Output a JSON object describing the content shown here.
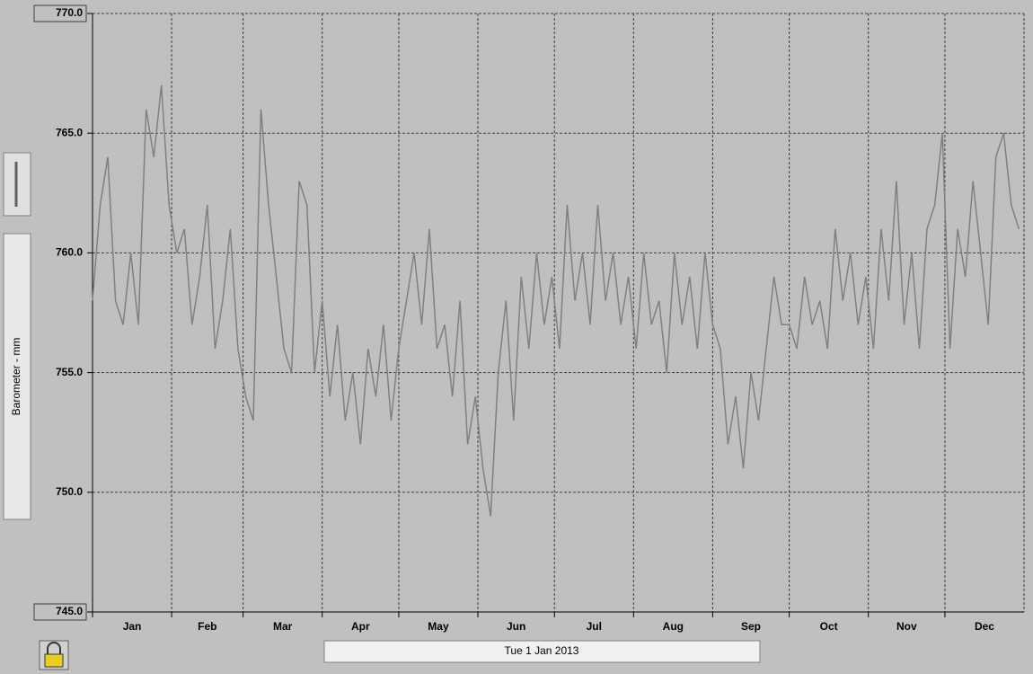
{
  "chart_data": {
    "type": "line",
    "y_label": "Barometer - mm",
    "date_label": "Tue 1 Jan 2013",
    "x": [
      1,
      4,
      7,
      10,
      13,
      16,
      19,
      22,
      25,
      28,
      31,
      34,
      37,
      40,
      43,
      46,
      49,
      52,
      55,
      58,
      61,
      64,
      67,
      70,
      73,
      76,
      79,
      82,
      85,
      88,
      91,
      94,
      97,
      100,
      103,
      106,
      109,
      112,
      115,
      118,
      121,
      124,
      127,
      130,
      133,
      136,
      139,
      142,
      145,
      148,
      151,
      154,
      157,
      160,
      163,
      166,
      169,
      172,
      175,
      178,
      181,
      184,
      187,
      190,
      193,
      196,
      199,
      202,
      205,
      208,
      211,
      214,
      217,
      220,
      223,
      226,
      229,
      232,
      235,
      238,
      241,
      244,
      247,
      250,
      253,
      256,
      259,
      262,
      265,
      268,
      271,
      274,
      277,
      280,
      283,
      286,
      289,
      292,
      295,
      298,
      301,
      304,
      307,
      310,
      313,
      316,
      319,
      322,
      325,
      328,
      331,
      334,
      337,
      340,
      343,
      346,
      349,
      352,
      355,
      358,
      361,
      364
    ],
    "series": [
      {
        "color": "#808080",
        "values": [
          758,
          762,
          764,
          758,
          757,
          760,
          757,
          766,
          764,
          767,
          762,
          760,
          761,
          757,
          759,
          762,
          756,
          758,
          761,
          756,
          754,
          753,
          766,
          762,
          759,
          756,
          755,
          763,
          762,
          755,
          758,
          754,
          757,
          753,
          755,
          752,
          756,
          754,
          757,
          753,
          756,
          758,
          760,
          757,
          761,
          756,
          757,
          754,
          758,
          752,
          754,
          751,
          749,
          755,
          758,
          753,
          759,
          756,
          760,
          757,
          759,
          756,
          762,
          758,
          760,
          757,
          762,
          758,
          760,
          757,
          759,
          756,
          760,
          757,
          758,
          755,
          760,
          757,
          759,
          756,
          760,
          757,
          756,
          752,
          754,
          751,
          755,
          753,
          756,
          759,
          757,
          757,
          756,
          759,
          757,
          758,
          756,
          761,
          758,
          760,
          757,
          759,
          756,
          761,
          758,
          763,
          757,
          760,
          756,
          761,
          762,
          765,
          756,
          761,
          759,
          763,
          760,
          757,
          764,
          765,
          762,
          761
        ]
      }
    ],
    "xlim": [
      1,
      366
    ],
    "xticks": [
      {
        "value": 1,
        "label": "Jan"
      },
      {
        "value": 32,
        "label": "Feb"
      },
      {
        "value": 60,
        "label": "Mar"
      },
      {
        "value": 91,
        "label": "Apr"
      },
      {
        "value": 121,
        "label": "May"
      },
      {
        "value": 152,
        "label": "Jun"
      },
      {
        "value": 182,
        "label": "Jul"
      },
      {
        "value": 213,
        "label": "Aug"
      },
      {
        "value": 244,
        "label": "Sep"
      },
      {
        "value": 274,
        "label": "Oct"
      },
      {
        "value": 305,
        "label": "Nov"
      },
      {
        "value": 335,
        "label": "Dec"
      }
    ],
    "ylim": [
      745,
      770
    ],
    "yticks": [
      {
        "value": 745,
        "label": "745.0"
      },
      {
        "value": 750,
        "label": "750.0"
      },
      {
        "value": 755,
        "label": "755.0"
      },
      {
        "value": 760,
        "label": "760.0"
      },
      {
        "value": 765,
        "label": "765.0"
      },
      {
        "value": 770,
        "label": "770.0"
      }
    ],
    "grid": true
  }
}
